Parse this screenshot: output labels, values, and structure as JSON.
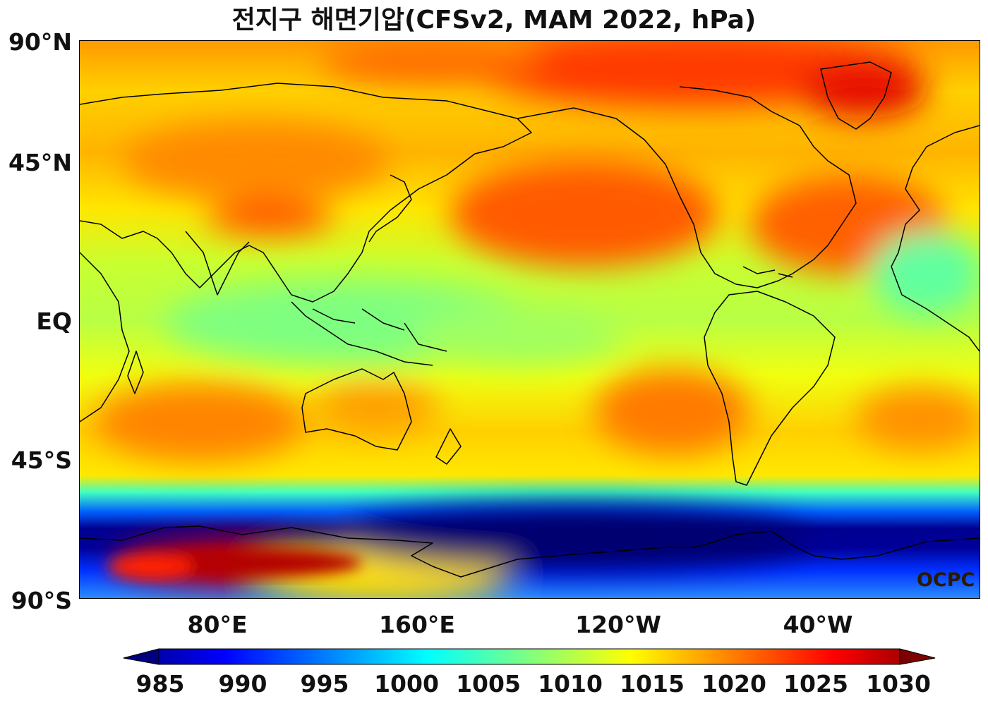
{
  "title": "전지구 해면기압(CFSv2, MAM 2022, hPa)",
  "watermark": "OCPC",
  "lat_labels": [
    "90°N",
    "45°N",
    "EQ",
    "45°S",
    "90°S"
  ],
  "lon_labels": [
    "80°E",
    "160°E",
    "120°W",
    "40°W"
  ],
  "colorbar": {
    "ticks": [
      "985",
      "990",
      "995",
      "1000",
      "1005",
      "1010",
      "1015",
      "1020",
      "1025",
      "1030"
    ],
    "min": 985,
    "max": 1030,
    "extend": "both",
    "colors": [
      "#00007f",
      "#0000ff",
      "#007fff",
      "#00ffff",
      "#7fff7f",
      "#ffff00",
      "#ff7f00",
      "#ff0000",
      "#7f0000"
    ]
  }
}
